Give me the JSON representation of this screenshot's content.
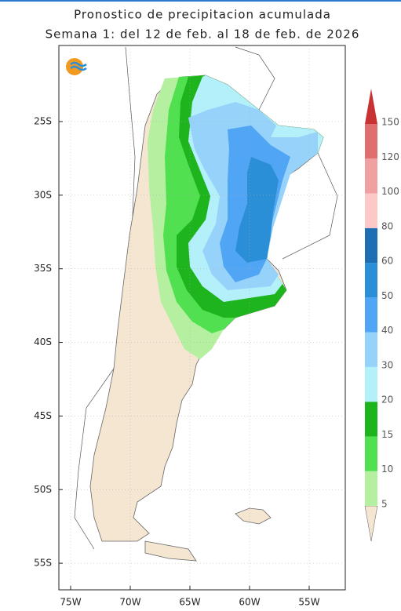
{
  "title": "Pronostico de precipitacion acumulada",
  "subtitle": "Semana 1: del 12 de feb. al 18 de feb. de 2026",
  "lat_ticks": [
    {
      "value": -25,
      "label": "25S"
    },
    {
      "value": -30,
      "label": "30S"
    },
    {
      "value": -35,
      "label": "35S"
    },
    {
      "value": -40,
      "label": "40S"
    },
    {
      "value": -45,
      "label": "45S"
    },
    {
      "value": -50,
      "label": "50S"
    },
    {
      "value": -55,
      "label": "55S"
    }
  ],
  "lon_ticks": [
    {
      "value": -75,
      "label": "75W"
    },
    {
      "value": -70,
      "label": "70W"
    },
    {
      "value": -65,
      "label": "65W"
    },
    {
      "value": -60,
      "label": "60W"
    },
    {
      "value": -55,
      "label": "55W"
    }
  ],
  "colorbar": {
    "levels": [
      5,
      10,
      15,
      20,
      30,
      40,
      50,
      60,
      80,
      100,
      120,
      150
    ],
    "colors": [
      "#f5e6d2",
      "#b4f0a0",
      "#50e050",
      "#1eb41e",
      "#b4f0fa",
      "#96d2fa",
      "#50a5f5",
      "#2a8fd6",
      "#1e6eb4",
      "#ffc8c8",
      "#f0a0a0",
      "#e06e6e",
      "#c83232",
      "#a01e1e"
    ]
  }
}
